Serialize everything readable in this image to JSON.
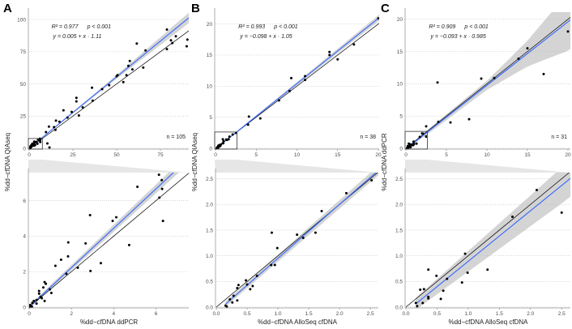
{
  "colors": {
    "regression": "#3366ff",
    "identity": "#000000",
    "ci_band": "#bdbdbd",
    "zoom_wedge": "#e6e6e6",
    "points": "#000000"
  },
  "chart_data": [
    {
      "type": "scatter",
      "panel_label": "A",
      "ylabel": "%dd−cfDNA QIAseq",
      "xlabel": "%dd−cfDNA ddPCR",
      "stats": {
        "r2": "R² = 0.977",
        "p": "p < 0.001",
        "equation": "y = 0.005 + x · 1.11"
      },
      "n_label": "n = 105",
      "regression": {
        "intercept": 0.005,
        "slope": 1.11
      },
      "ci_halfwidth": {
        "x": [
          0,
          8,
          45,
          90
        ],
        "hw": [
          0.1,
          0.3,
          1.2,
          4
        ]
      },
      "full": {
        "xlim": [
          0,
          91.2
        ],
        "ylim": [
          0,
          105.7
        ],
        "xticks": [
          0,
          25,
          50,
          75
        ],
        "xtick_labels": [
          "0",
          "25",
          "50",
          "75"
        ],
        "yticks": [
          0,
          25,
          50,
          75,
          100
        ],
        "ytick_labels": [
          "0",
          "25",
          "50",
          "75",
          "100"
        ],
        "points": [
          [
            78.7,
            92.2
          ],
          [
            61.5,
            81.3
          ],
          [
            66.5,
            76
          ],
          [
            83.8,
            87
          ],
          [
            81,
            83.8
          ],
          [
            81.8,
            81.7
          ],
          [
            90.4,
            84.4
          ],
          [
            90,
            79.2
          ],
          [
            78.7,
            77
          ],
          [
            57.5,
            67.8
          ],
          [
            56.7,
            64
          ],
          [
            59,
            61.3
          ],
          [
            65.2,
            62.7
          ],
          [
            55.6,
            56.8
          ],
          [
            50.5,
            56.8
          ],
          [
            50,
            56
          ],
          [
            53.8,
            51.4
          ],
          [
            45.7,
            49
          ],
          [
            35.9,
            47
          ],
          [
            41.7,
            45.9
          ],
          [
            27,
            39.2
          ],
          [
            27,
            36.4
          ],
          [
            36.3,
            37
          ],
          [
            30.6,
            31.8
          ],
          [
            28.4,
            25.5
          ],
          [
            24.3,
            28.2
          ],
          [
            19.6,
            29.5
          ],
          [
            21.9,
            23.8
          ],
          [
            15.3,
            21.5
          ],
          [
            17.3,
            20.6
          ],
          [
            14.2,
            16.4
          ],
          [
            11.3,
            16.8
          ],
          [
            15,
            14.3
          ],
          [
            9.6,
            12.6
          ],
          [
            10.4,
            3.8
          ],
          [
            11.6,
            0.6
          ]
        ]
      },
      "zoom": {
        "xlim": [
          0,
          7.55
        ],
        "ylim": [
          0,
          7.58
        ],
        "xticks": [
          0,
          2,
          4,
          6
        ],
        "xtick_labels": [
          "0",
          "2",
          "4",
          "6"
        ],
        "yticks": [
          0,
          2,
          4,
          6
        ],
        "ytick_labels": [
          "0",
          "2",
          "4",
          "6"
        ],
        "points": [
          [
            6.14,
            7.46
          ],
          [
            6.27,
            7.16
          ],
          [
            6.29,
            6.66
          ],
          [
            5.12,
            6.78
          ],
          [
            6.16,
            6.17
          ],
          [
            6.33,
            4.86
          ],
          [
            2.88,
            5.18
          ],
          [
            3.95,
            4.86
          ],
          [
            4.12,
            5.06
          ],
          [
            4.73,
            3.5
          ],
          [
            1.85,
            3.65
          ],
          [
            2.67,
            3.59
          ],
          [
            1.51,
            2.67
          ],
          [
            1.84,
            2.86
          ],
          [
            1.24,
            2.33
          ],
          [
            2.3,
            2.22
          ],
          [
            3.39,
            2.48
          ],
          [
            2.9,
            2.04
          ],
          [
            1.76,
            1.88
          ],
          [
            0.73,
            1.41
          ],
          [
            0.79,
            1.31
          ],
          [
            0.67,
            1.11
          ],
          [
            0.98,
            1.0
          ],
          [
            1.05,
            0.8
          ],
          [
            0.47,
            0.91
          ],
          [
            0.47,
            0.76
          ],
          [
            0.73,
            0.35
          ],
          [
            0.54,
            0.58
          ],
          [
            0.6,
            0.5
          ],
          [
            0.35,
            0.4
          ],
          [
            0.22,
            0.35
          ],
          [
            0.35,
            0.2
          ],
          [
            0.15,
            0.24
          ],
          [
            0.05,
            0.12
          ],
          [
            0.03,
            0.03
          ],
          [
            0.13,
            0.03
          ]
        ]
      }
    },
    {
      "type": "scatter",
      "panel_label": "B",
      "ylabel": "%dd−cfDNA QIAseq",
      "xlabel": "%dd−cfDNA AlloSeq cfDNA",
      "stats": {
        "r2": "R² = 0.993",
        "p": "p < 0.001",
        "equation": "y = −0.098 + x · 1.05"
      },
      "n_label": "n = 38",
      "regression": {
        "intercept": -0.098,
        "slope": 1.05
      },
      "ci_halfwidth": {
        "x": [
          0,
          3,
          20
        ],
        "hw": [
          0.05,
          0.1,
          0.5
        ]
      },
      "full": {
        "xlim": [
          0,
          20.1
        ],
        "ylim": [
          0,
          21.9
        ],
        "xticks": [
          0,
          5,
          10,
          15,
          20
        ],
        "xtick_labels": [
          "0",
          "5",
          "10",
          "15",
          "20"
        ],
        "yticks": [
          0,
          5,
          10,
          15,
          20
        ],
        "ytick_labels": [
          "0",
          "5",
          "10",
          "15",
          "20"
        ],
        "points": [
          [
            20,
            20.9
          ],
          [
            14,
            15.5
          ],
          [
            14,
            15
          ],
          [
            15,
            14.3
          ],
          [
            17,
            16.7
          ],
          [
            11,
            11.6
          ],
          [
            11,
            11
          ],
          [
            9.3,
            11.3
          ],
          [
            9.1,
            9.2
          ],
          [
            7.8,
            7.7
          ],
          [
            4.1,
            5.1
          ],
          [
            5.5,
            4.8
          ],
          [
            4,
            3.8
          ]
        ]
      },
      "zoom": {
        "xlim": [
          0,
          2.63
        ],
        "ylim": [
          0,
          2.62
        ],
        "xticks": [
          0,
          0.5,
          1,
          1.5,
          2,
          2.5
        ],
        "xtick_labels": [
          "0.0",
          "0.5",
          "1.0",
          "1.5",
          "2.0",
          "2.5"
        ],
        "yticks": [
          0,
          0.5,
          1,
          1.5,
          2,
          2.5
        ],
        "ytick_labels": [
          "0.0",
          "0.5",
          "1.0",
          "1.5",
          "2.0",
          "2.5"
        ],
        "points": [
          [
            2.52,
            2.47
          ],
          [
            2.11,
            2.22
          ],
          [
            1.71,
            1.87
          ],
          [
            1.31,
            1.41
          ],
          [
            1.41,
            1.35
          ],
          [
            1.61,
            1.45
          ],
          [
            0.9,
            1.45
          ],
          [
            0.99,
            1.15
          ],
          [
            0.89,
            0.82
          ],
          [
            0.95,
            0.82
          ],
          [
            0.66,
            0.61
          ],
          [
            0.48,
            0.52
          ],
          [
            0.5,
            0.44
          ],
          [
            0.59,
            0.41
          ],
          [
            0.55,
            0.35
          ],
          [
            0.36,
            0.43
          ],
          [
            0.34,
            0.37
          ],
          [
            0.28,
            0.22
          ],
          [
            0.22,
            0.15
          ],
          [
            0.34,
            0.13
          ],
          [
            0.26,
            0.09
          ],
          [
            0.15,
            0.03
          ],
          [
            0.17,
            0.01
          ]
        ]
      }
    },
    {
      "type": "scatter",
      "panel_label": "C",
      "ylabel": "%dd−cfDNA ddPCR",
      "xlabel": "%dd−cfDNA AlloSeq cfDNA",
      "stats": {
        "r2": "R² = 0.909",
        "p": "p < 0.001",
        "equation": "y = −0.093 + x · 0.985"
      },
      "n_label": "n = 31",
      "regression": {
        "intercept": -0.093,
        "slope": 0.985
      },
      "ci_halfwidth": {
        "x": [
          0,
          2.5,
          10,
          15,
          20
        ],
        "hw": [
          0.1,
          0.35,
          0.7,
          2,
          4.5
        ]
      },
      "full": {
        "xlim": [
          0,
          20.3
        ],
        "ylim": [
          0,
          21.1
        ],
        "xticks": [
          0,
          5,
          10,
          15,
          20
        ],
        "xtick_labels": [
          "0",
          "5",
          "10",
          "15",
          "20"
        ],
        "yticks": [
          0,
          5,
          10,
          15,
          20
        ],
        "ytick_labels": [
          "0",
          "5",
          "10",
          "15",
          "20"
        ],
        "points": [
          [
            20,
            18.1
          ],
          [
            15,
            15.5
          ],
          [
            13.9,
            13.9
          ],
          [
            10.9,
            10.9
          ],
          [
            9.3,
            10.8
          ],
          [
            17,
            11.5
          ],
          [
            3.9,
            10.2
          ],
          [
            4,
            4.1
          ],
          [
            5.5,
            4.0
          ],
          [
            7.8,
            4.5
          ],
          [
            2.5,
            3.4
          ],
          [
            2.5,
            1.8
          ],
          [
            2.0,
            2.3
          ]
        ]
      },
      "zoom": {
        "xlim": [
          0,
          2.64
        ],
        "ylim": [
          0,
          2.62
        ],
        "xticks": [
          0,
          0.5,
          1,
          1.5,
          2,
          2.5
        ],
        "xtick_labels": [
          "0.0",
          "0.5",
          "1.0",
          "1.5",
          "2.0",
          "2.5"
        ],
        "yticks": [
          0,
          0.5,
          1,
          1.5,
          2,
          2.5
        ],
        "ytick_labels": [
          "0.0",
          "0.5",
          "1.0",
          "1.5",
          "2.0",
          "2.5"
        ],
        "points": [
          [
            2.1,
            2.28
          ],
          [
            1.71,
            1.76
          ],
          [
            2.5,
            1.84
          ],
          [
            0.95,
            1.04
          ],
          [
            1.31,
            0.73
          ],
          [
            0.36,
            0.73
          ],
          [
            0.49,
            0.61
          ],
          [
            0.66,
            0.55
          ],
          [
            0.99,
            0.67
          ],
          [
            0.9,
            0.48
          ],
          [
            0.6,
            0.32
          ],
          [
            0.56,
            0.16
          ],
          [
            0.23,
            0.34
          ],
          [
            0.29,
            0.35
          ],
          [
            0.36,
            0.2
          ],
          [
            0.36,
            0.17
          ],
          [
            0.27,
            0.08
          ],
          [
            0.16,
            0.08
          ],
          [
            0.18,
            0.02
          ]
        ]
      }
    }
  ]
}
